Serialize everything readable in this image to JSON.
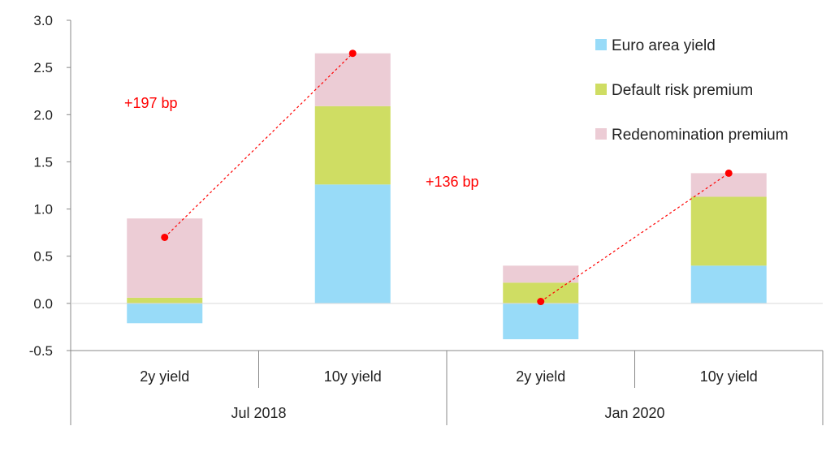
{
  "chart_data": {
    "type": "bar",
    "stacked": true,
    "ylim": [
      -0.5,
      3.0
    ],
    "yticks": [
      "-0.5",
      "0.0",
      "0.5",
      "1.0",
      "1.5",
      "2.0",
      "2.5",
      "3.0"
    ],
    "grid": false,
    "legend_position": "top-right",
    "groups": [
      {
        "label": "Jul 2018",
        "categories": [
          "2y yield",
          "10y yield"
        ]
      },
      {
        "label": "Jan 2020",
        "categories": [
          "2y yield",
          "10y yield"
        ]
      }
    ],
    "series": [
      {
        "name": "Euro area yield",
        "color": "#98dbf8",
        "values": [
          -0.21,
          1.26,
          -0.38,
          0.4
        ]
      },
      {
        "name": "Default risk premium",
        "color": "#cfdd63",
        "values": [
          0.06,
          0.83,
          0.22,
          0.73
        ]
      },
      {
        "name": "Redenomination premium",
        "color": "#ecccd5",
        "values": [
          0.84,
          0.56,
          0.18,
          0.25
        ]
      }
    ],
    "total_markers": {
      "color": "#ff0000",
      "values": [
        0.7,
        2.65,
        0.02,
        1.38
      ]
    },
    "annotations": [
      {
        "text": "+197 bp",
        "color": "#ff0000"
      },
      {
        "text": "+136 bp",
        "color": "#ff0000"
      }
    ]
  }
}
